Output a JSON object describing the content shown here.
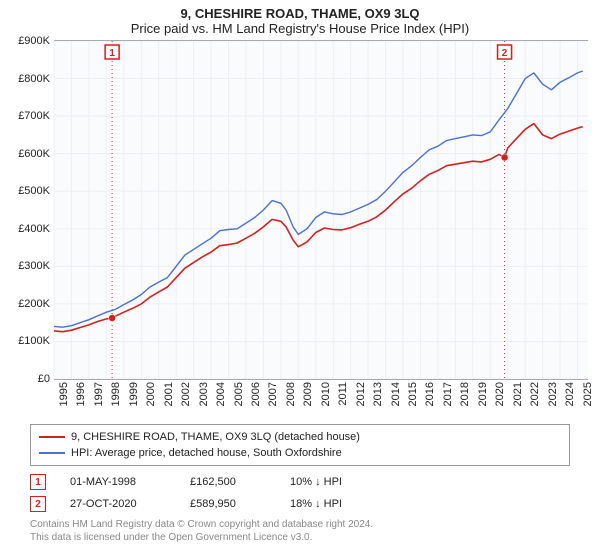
{
  "title": "9, CHESHIRE ROAD, THAME, OX9 3LQ",
  "subtitle": "Price paid vs. HM Land Registry's House Price Index (HPI)",
  "chart": {
    "type": "line",
    "background_color": "#fafbfd",
    "grid_color": "#eceff4",
    "axis_color": "#666666",
    "y_axis": {
      "min": 0,
      "max": 900000,
      "tick_step": 100000,
      "ticks": [
        "£0",
        "£100K",
        "£200K",
        "£300K",
        "£400K",
        "£500K",
        "£600K",
        "£700K",
        "£800K",
        "£900K"
      ]
    },
    "x_axis": {
      "min": 1995,
      "max": 2025.6,
      "ticks": [
        "1995",
        "1996",
        "1997",
        "1998",
        "1999",
        "2000",
        "2001",
        "2002",
        "2003",
        "2004",
        "2005",
        "2006",
        "2007",
        "2008",
        "2009",
        "2010",
        "2011",
        "2012",
        "2013",
        "2014",
        "2015",
        "2016",
        "2017",
        "2018",
        "2019",
        "2020",
        "2021",
        "2022",
        "2023",
        "2024",
        "2025"
      ]
    },
    "series": [
      {
        "name": "hpi",
        "color": "#4a6fd6",
        "stroke_width": 1.4,
        "points": [
          [
            1995.0,
            140000
          ],
          [
            1995.5,
            138000
          ],
          [
            1996.0,
            142000
          ],
          [
            1996.5,
            150000
          ],
          [
            1997.0,
            158000
          ],
          [
            1997.5,
            168000
          ],
          [
            1998.0,
            178000
          ],
          [
            1998.5,
            185000
          ],
          [
            1999.0,
            198000
          ],
          [
            1999.5,
            210000
          ],
          [
            2000.0,
            225000
          ],
          [
            2000.5,
            245000
          ],
          [
            2001.0,
            258000
          ],
          [
            2001.5,
            270000
          ],
          [
            2002.0,
            300000
          ],
          [
            2002.5,
            330000
          ],
          [
            2003.0,
            345000
          ],
          [
            2003.5,
            360000
          ],
          [
            2004.0,
            375000
          ],
          [
            2004.5,
            395000
          ],
          [
            2005.0,
            398000
          ],
          [
            2005.5,
            400000
          ],
          [
            2006.0,
            415000
          ],
          [
            2006.5,
            430000
          ],
          [
            2007.0,
            450000
          ],
          [
            2007.5,
            475000
          ],
          [
            2008.0,
            468000
          ],
          [
            2008.3,
            450000
          ],
          [
            2008.7,
            405000
          ],
          [
            2009.0,
            385000
          ],
          [
            2009.5,
            400000
          ],
          [
            2010.0,
            430000
          ],
          [
            2010.5,
            445000
          ],
          [
            2011.0,
            440000
          ],
          [
            2011.5,
            438000
          ],
          [
            2012.0,
            445000
          ],
          [
            2012.5,
            455000
          ],
          [
            2013.0,
            465000
          ],
          [
            2013.5,
            478000
          ],
          [
            2014.0,
            500000
          ],
          [
            2014.5,
            525000
          ],
          [
            2015.0,
            550000
          ],
          [
            2015.5,
            568000
          ],
          [
            2016.0,
            590000
          ],
          [
            2016.5,
            610000
          ],
          [
            2017.0,
            620000
          ],
          [
            2017.5,
            635000
          ],
          [
            2018.0,
            640000
          ],
          [
            2018.5,
            645000
          ],
          [
            2019.0,
            650000
          ],
          [
            2019.5,
            648000
          ],
          [
            2020.0,
            658000
          ],
          [
            2020.5,
            690000
          ],
          [
            2021.0,
            720000
          ],
          [
            2021.5,
            760000
          ],
          [
            2022.0,
            800000
          ],
          [
            2022.5,
            815000
          ],
          [
            2023.0,
            785000
          ],
          [
            2023.5,
            770000
          ],
          [
            2024.0,
            790000
          ],
          [
            2024.5,
            802000
          ],
          [
            2025.0,
            815000
          ],
          [
            2025.3,
            820000
          ]
        ]
      },
      {
        "name": "price_paid",
        "color": "#d61f1f",
        "stroke_width": 1.6,
        "points": [
          [
            1995.0,
            128000
          ],
          [
            1995.5,
            126000
          ],
          [
            1996.0,
            130000
          ],
          [
            1996.5,
            137000
          ],
          [
            1997.0,
            144000
          ],
          [
            1997.5,
            153000
          ],
          [
            1998.0,
            160000
          ],
          [
            1998.33,
            162500
          ],
          [
            1998.5,
            167000
          ],
          [
            1999.0,
            178000
          ],
          [
            1999.5,
            188000
          ],
          [
            2000.0,
            200000
          ],
          [
            2000.5,
            218000
          ],
          [
            2001.0,
            232000
          ],
          [
            2001.5,
            245000
          ],
          [
            2002.0,
            270000
          ],
          [
            2002.5,
            295000
          ],
          [
            2003.0,
            310000
          ],
          [
            2003.5,
            325000
          ],
          [
            2004.0,
            338000
          ],
          [
            2004.5,
            355000
          ],
          [
            2005.0,
            358000
          ],
          [
            2005.5,
            362000
          ],
          [
            2006.0,
            375000
          ],
          [
            2006.5,
            388000
          ],
          [
            2007.0,
            405000
          ],
          [
            2007.5,
            425000
          ],
          [
            2008.0,
            420000
          ],
          [
            2008.3,
            405000
          ],
          [
            2008.7,
            370000
          ],
          [
            2009.0,
            352000
          ],
          [
            2009.5,
            365000
          ],
          [
            2010.0,
            390000
          ],
          [
            2010.5,
            402000
          ],
          [
            2011.0,
            398000
          ],
          [
            2011.5,
            397000
          ],
          [
            2012.0,
            403000
          ],
          [
            2012.5,
            412000
          ],
          [
            2013.0,
            420000
          ],
          [
            2013.5,
            432000
          ],
          [
            2014.0,
            450000
          ],
          [
            2014.5,
            472000
          ],
          [
            2015.0,
            493000
          ],
          [
            2015.5,
            508000
          ],
          [
            2016.0,
            528000
          ],
          [
            2016.5,
            545000
          ],
          [
            2017.0,
            555000
          ],
          [
            2017.5,
            568000
          ],
          [
            2018.0,
            572000
          ],
          [
            2018.5,
            576000
          ],
          [
            2019.0,
            580000
          ],
          [
            2019.5,
            578000
          ],
          [
            2020.0,
            585000
          ],
          [
            2020.5,
            598000
          ],
          [
            2020.82,
            589950
          ],
          [
            2021.0,
            615000
          ],
          [
            2021.5,
            640000
          ],
          [
            2022.0,
            665000
          ],
          [
            2022.5,
            680000
          ],
          [
            2023.0,
            650000
          ],
          [
            2023.5,
            640000
          ],
          [
            2024.0,
            652000
          ],
          [
            2024.5,
            660000
          ],
          [
            2025.0,
            668000
          ],
          [
            2025.3,
            672000
          ]
        ]
      }
    ],
    "markers": [
      {
        "n": 1,
        "x": 1998.33,
        "y": 162500,
        "color": "#d61f1f",
        "line_dash": "1,3"
      },
      {
        "n": 2,
        "x": 2020.82,
        "y": 589950,
        "color": "#d61f1f",
        "line_dash": "1,3"
      }
    ]
  },
  "legend": {
    "items": [
      {
        "color": "#d61f1f",
        "label": "9, CHESHIRE ROAD, THAME, OX9 3LQ (detached house)"
      },
      {
        "color": "#4a6fd6",
        "label": "HPI: Average price, detached house, South Oxfordshire"
      }
    ]
  },
  "sales": [
    {
      "n": "1",
      "color": "#d61f1f",
      "date": "01-MAY-1998",
      "price": "£162,500",
      "pct": "10% ↓ HPI"
    },
    {
      "n": "2",
      "color": "#d61f1f",
      "date": "27-OCT-2020",
      "price": "£589,950",
      "pct": "18% ↓ HPI"
    }
  ],
  "footer": {
    "line1": "Contains HM Land Registry data © Crown copyright and database right 2024.",
    "line2": "This data is licensed under the Open Government Licence v3.0."
  }
}
